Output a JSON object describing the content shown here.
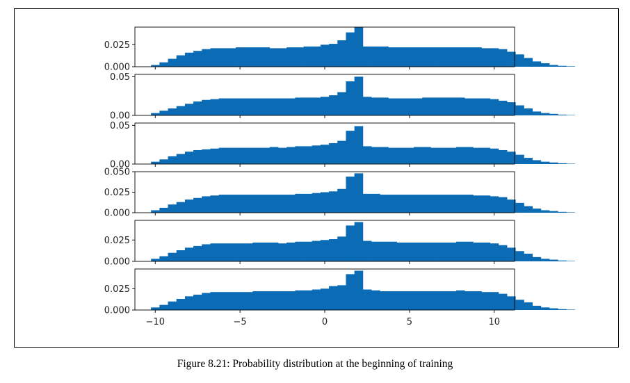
{
  "caption": "Figure 8.21: Probability distribution at the beginning of training",
  "chart_data": {
    "type": "bar",
    "layout": "stacked-subplots",
    "bar_color": "#0b6cb5",
    "bin_edges_start": -10.25,
    "bin_width": 0.5,
    "xlim": [
      -11.2,
      11.2
    ],
    "x_ticks": [
      -10,
      -5,
      0,
      5,
      10
    ],
    "x_tick_labels": [
      "−10",
      "−5",
      "0",
      "5",
      "10"
    ],
    "subplots": [
      {
        "ylim": [
          0,
          0.045
        ],
        "y_ticks": [
          0,
          0.025
        ],
        "y_tick_labels": [
          "0.000",
          "0.025"
        ],
        "values": [
          0.002,
          0.005,
          0.009,
          0.013,
          0.016,
          0.018,
          0.02,
          0.021,
          0.021,
          0.021,
          0.022,
          0.022,
          0.022,
          0.022,
          0.021,
          0.021,
          0.022,
          0.022,
          0.023,
          0.023,
          0.025,
          0.026,
          0.03,
          0.039,
          0.045,
          0.023,
          0.023,
          0.023,
          0.022,
          0.022,
          0.022,
          0.022,
          0.022,
          0.022,
          0.022,
          0.022,
          0.022,
          0.022,
          0.022,
          0.021,
          0.021,
          0.02,
          0.017,
          0.014,
          0.01,
          0.006,
          0.004,
          0.002,
          0.001,
          0.0005
        ]
      },
      {
        "ylim": [
          0,
          0.053
        ],
        "y_ticks": [
          0,
          0.05
        ],
        "y_tick_labels": [
          "0.00",
          "0.05"
        ],
        "values": [
          0.003,
          0.006,
          0.009,
          0.012,
          0.015,
          0.018,
          0.02,
          0.021,
          0.022,
          0.022,
          0.022,
          0.022,
          0.022,
          0.022,
          0.022,
          0.022,
          0.022,
          0.023,
          0.023,
          0.023,
          0.024,
          0.026,
          0.03,
          0.044,
          0.05,
          0.024,
          0.023,
          0.023,
          0.022,
          0.022,
          0.022,
          0.022,
          0.023,
          0.023,
          0.023,
          0.023,
          0.023,
          0.022,
          0.022,
          0.022,
          0.021,
          0.019,
          0.017,
          0.013,
          0.009,
          0.005,
          0.003,
          0.002,
          0.001,
          0.0005
        ]
      },
      {
        "ylim": [
          0,
          0.053
        ],
        "y_ticks": [
          0,
          0.05
        ],
        "y_tick_labels": [
          "0.00",
          "0.05"
        ],
        "values": [
          0.003,
          0.006,
          0.01,
          0.013,
          0.016,
          0.018,
          0.019,
          0.02,
          0.021,
          0.021,
          0.021,
          0.021,
          0.021,
          0.021,
          0.022,
          0.021,
          0.022,
          0.023,
          0.023,
          0.024,
          0.025,
          0.027,
          0.03,
          0.043,
          0.049,
          0.023,
          0.022,
          0.022,
          0.021,
          0.021,
          0.021,
          0.022,
          0.022,
          0.021,
          0.021,
          0.021,
          0.022,
          0.022,
          0.021,
          0.021,
          0.02,
          0.018,
          0.016,
          0.012,
          0.008,
          0.005,
          0.003,
          0.002,
          0.001,
          0.0005
        ]
      },
      {
        "ylim": [
          0,
          0.05
        ],
        "y_ticks": [
          0,
          0.025,
          0.05
        ],
        "y_tick_labels": [
          "0.000",
          "0.025",
          "0.050"
        ],
        "values": [
          0.003,
          0.006,
          0.01,
          0.013,
          0.016,
          0.018,
          0.02,
          0.021,
          0.022,
          0.022,
          0.022,
          0.022,
          0.022,
          0.022,
          0.022,
          0.022,
          0.022,
          0.023,
          0.023,
          0.024,
          0.025,
          0.026,
          0.029,
          0.044,
          0.048,
          0.023,
          0.023,
          0.022,
          0.022,
          0.022,
          0.022,
          0.022,
          0.022,
          0.022,
          0.022,
          0.022,
          0.022,
          0.022,
          0.021,
          0.021,
          0.02,
          0.019,
          0.016,
          0.012,
          0.008,
          0.005,
          0.003,
          0.002,
          0.001,
          0.0005
        ]
      },
      {
        "ylim": [
          0,
          0.048
        ],
        "y_ticks": [
          0,
          0.025
        ],
        "y_tick_labels": [
          "0.000",
          "0.025"
        ],
        "values": [
          0.003,
          0.006,
          0.01,
          0.013,
          0.016,
          0.018,
          0.02,
          0.021,
          0.021,
          0.021,
          0.021,
          0.021,
          0.022,
          0.022,
          0.022,
          0.021,
          0.022,
          0.023,
          0.023,
          0.024,
          0.025,
          0.026,
          0.029,
          0.042,
          0.046,
          0.024,
          0.023,
          0.023,
          0.023,
          0.022,
          0.022,
          0.022,
          0.022,
          0.022,
          0.022,
          0.022,
          0.023,
          0.023,
          0.022,
          0.022,
          0.021,
          0.019,
          0.016,
          0.012,
          0.009,
          0.005,
          0.003,
          0.002,
          0.001,
          0.0005
        ]
      },
      {
        "ylim": [
          0,
          0.048
        ],
        "y_ticks": [
          0,
          0.025
        ],
        "y_tick_labels": [
          "0.000",
          "0.025"
        ],
        "values": [
          0.003,
          0.006,
          0.01,
          0.013,
          0.016,
          0.018,
          0.02,
          0.021,
          0.021,
          0.021,
          0.021,
          0.021,
          0.022,
          0.022,
          0.022,
          0.022,
          0.022,
          0.023,
          0.023,
          0.024,
          0.025,
          0.028,
          0.029,
          0.042,
          0.046,
          0.024,
          0.023,
          0.022,
          0.022,
          0.022,
          0.022,
          0.022,
          0.022,
          0.022,
          0.022,
          0.022,
          0.023,
          0.022,
          0.022,
          0.021,
          0.021,
          0.019,
          0.016,
          0.012,
          0.009,
          0.005,
          0.003,
          0.002,
          0.001,
          0.0005
        ]
      }
    ]
  }
}
